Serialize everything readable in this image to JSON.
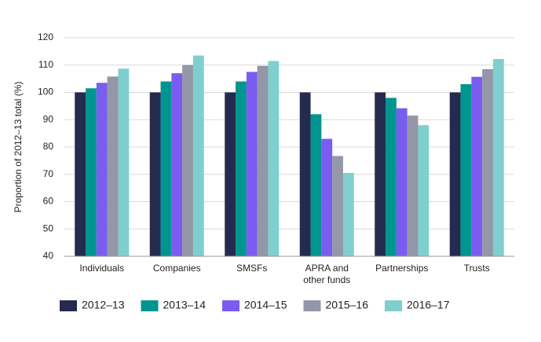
{
  "chart_data": {
    "type": "bar",
    "y_label": "Proportion of 2012–13 total (%)",
    "categories": [
      "Individuals",
      "Companies",
      "SMSFs",
      "APRA and other funds",
      "Partnerships",
      "Trusts"
    ],
    "series": [
      {
        "name": "2012–13",
        "color": "#252a4f",
        "values": [
          100,
          100,
          100,
          100,
          100,
          100
        ]
      },
      {
        "name": "2013–14",
        "color": "#00958f",
        "values": [
          101.5,
          104,
          104,
          92,
          98,
          103
        ]
      },
      {
        "name": "2014–15",
        "color": "#7b5cf0",
        "values": [
          103.5,
          107,
          107.5,
          83,
          94.2,
          105.7
        ]
      },
      {
        "name": "2015–16",
        "color": "#9397a8",
        "values": [
          105.8,
          110,
          109.7,
          76.7,
          91.5,
          108.5
        ]
      },
      {
        "name": "2016–17",
        "color": "#7fcfcf",
        "values": [
          108.7,
          113.5,
          111.5,
          70.5,
          88,
          112.2
        ]
      }
    ],
    "ylim": [
      40,
      120
    ],
    "yticks": [
      40,
      50,
      60,
      70,
      80,
      90,
      100,
      110,
      120
    ],
    "grid": true,
    "legend": "bottom"
  }
}
